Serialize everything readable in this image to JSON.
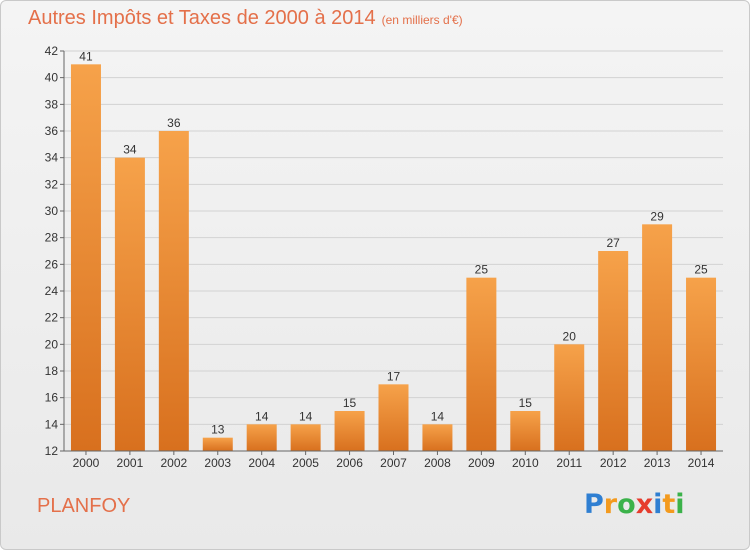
{
  "title": "Autres Impôts et Taxes de 2000 à 2014",
  "title_unit": "(en milliers d'€)",
  "commune": "PLANFOY",
  "logo": "Proxiti",
  "colors": {
    "title": "#e4704a",
    "bar_top": "#f6a24a",
    "bar_bottom": "#d8701e"
  },
  "chart_data": {
    "type": "bar",
    "title": "Autres Impôts et Taxes de 2000 à 2014",
    "unit": "(en milliers d'€)",
    "categories": [
      "2000",
      "2001",
      "2002",
      "2003",
      "2004",
      "2005",
      "2006",
      "2007",
      "2008",
      "2009",
      "2010",
      "2011",
      "2012",
      "2013",
      "2014"
    ],
    "values": [
      41,
      34,
      36,
      13,
      14,
      14,
      15,
      17,
      14,
      25,
      15,
      20,
      27,
      29,
      25
    ],
    "ylim": [
      12,
      42
    ],
    "yticks": [
      12,
      14,
      16,
      18,
      20,
      22,
      24,
      26,
      28,
      30,
      32,
      34,
      36,
      38,
      40,
      42
    ],
    "grid": true,
    "legend": "none"
  }
}
